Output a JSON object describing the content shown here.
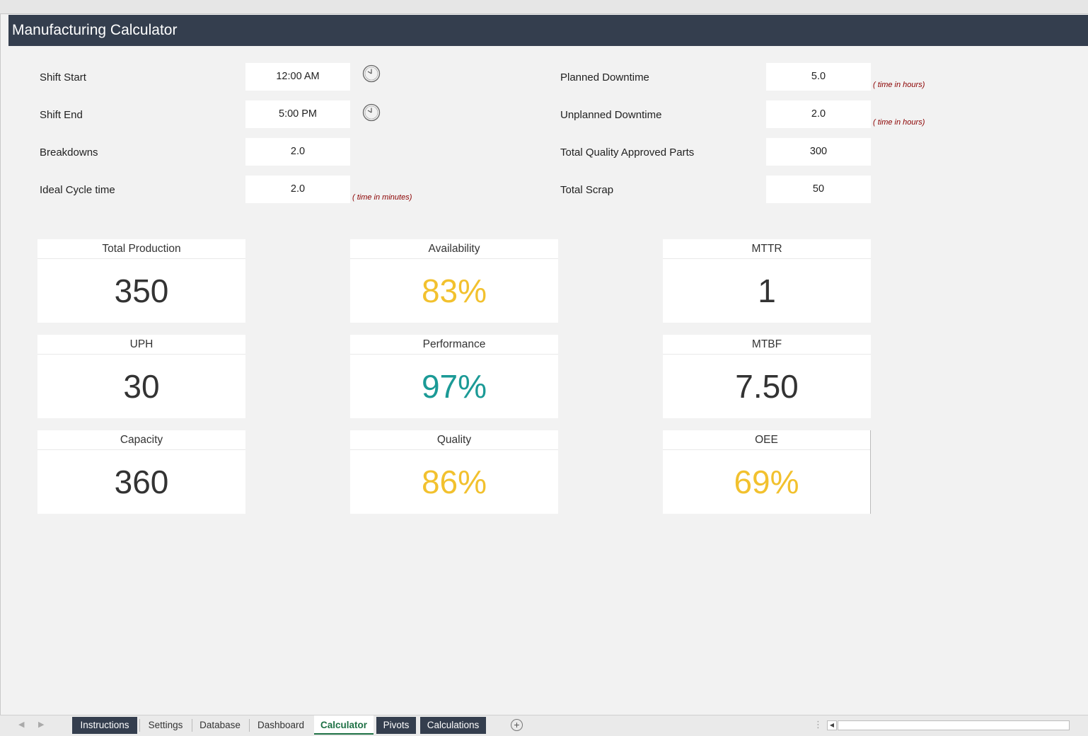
{
  "title": "Manufacturing Calculator",
  "inputs_left": [
    {
      "label": "Shift Start",
      "value": "12:00 AM",
      "clock": true
    },
    {
      "label": "Shift End",
      "value": "5:00 PM",
      "clock": true
    },
    {
      "label": "Breakdowns",
      "value": "2.0"
    },
    {
      "label": "Ideal Cycle time",
      "value": "2.0",
      "hint": "( time in minutes)"
    }
  ],
  "inputs_right": [
    {
      "label": "Planned Downtime",
      "value": "5.0",
      "hint": "( time in hours)"
    },
    {
      "label": "Unplanned Downtime",
      "value": "2.0",
      "hint": "( time in hours)"
    },
    {
      "label": "Total Quality Approved Parts",
      "value": "300"
    },
    {
      "label": "Total Scrap",
      "value": "50"
    }
  ],
  "metrics": [
    {
      "title": "Total Production",
      "value": "350",
      "color": "#333333"
    },
    {
      "title": "Availability",
      "value": "83%",
      "color": "#f2c12e"
    },
    {
      "title": "MTTR",
      "value": "1",
      "color": "#333333"
    },
    {
      "title": "UPH",
      "value": "30",
      "color": "#333333"
    },
    {
      "title": "Performance",
      "value": "97%",
      "color": "#1b9a96"
    },
    {
      "title": "MTBF",
      "value": "7.50",
      "color": "#333333"
    },
    {
      "title": "Capacity",
      "value": "360",
      "color": "#333333"
    },
    {
      "title": "Quality",
      "value": "86%",
      "color": "#f2c12e"
    },
    {
      "title": "OEE",
      "value": "69%",
      "color": "#f2c12e"
    }
  ],
  "sheet_tabs": [
    {
      "label": "Instructions",
      "style": "dark"
    },
    {
      "label": "Settings",
      "style": "plain"
    },
    {
      "label": "Database",
      "style": "plain"
    },
    {
      "label": "Dashboard",
      "style": "plain"
    },
    {
      "label": "Calculator",
      "style": "active"
    },
    {
      "label": "Pivots",
      "style": "dark"
    },
    {
      "label": "Calculations",
      "style": "dark"
    }
  ],
  "icons": {
    "clock": "clock-icon",
    "add_sheet": "add-sheet-icon",
    "prev": "prev-sheet-icon",
    "next": "next-sheet-icon"
  }
}
